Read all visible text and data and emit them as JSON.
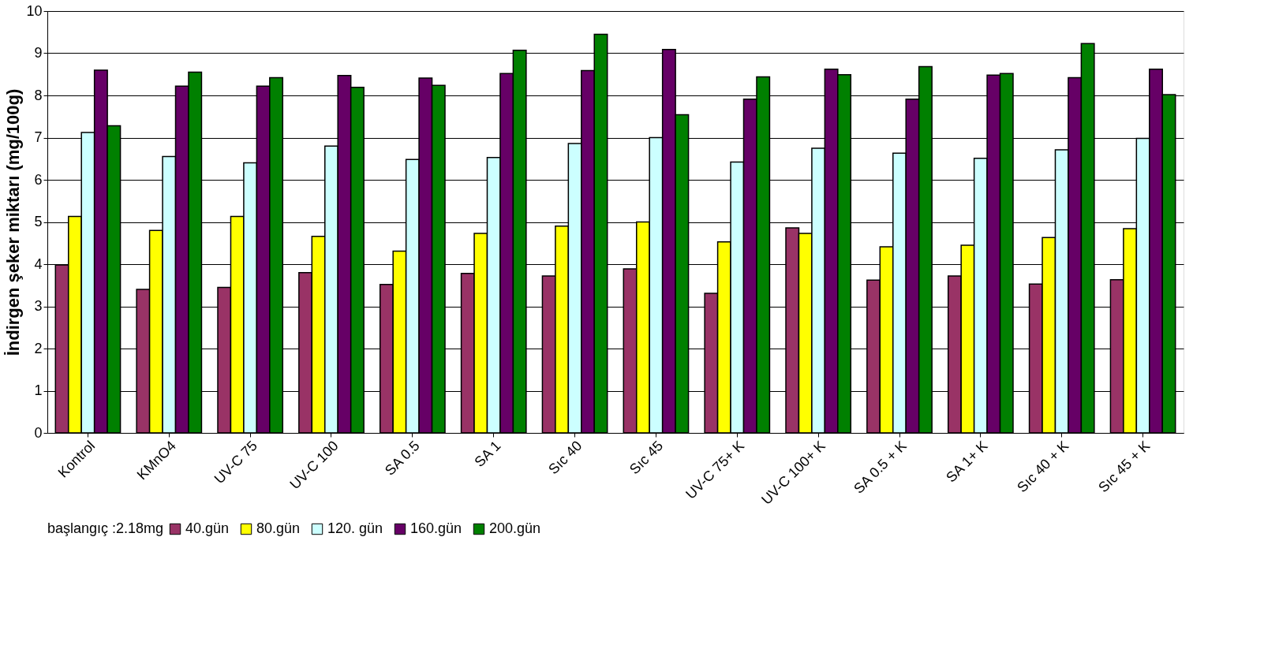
{
  "chart_data": {
    "type": "bar",
    "ylabel": "İndirgen şeker miktarı (mg/100g)",
    "legend_title": "başlangıç :2.18mg",
    "categories": [
      "Kontrol",
      "KMnO4",
      "UV-C 75",
      "UV-C 100",
      "SA 0.5",
      "SA 1",
      "Sıc 40",
      "Sıc 45",
      "UV-C 75+ K",
      "UV-C 100+ K",
      "SA 0.5 + K",
      "SA 1+ K",
      "Sıc 40 + K",
      "Sıc 45 + K"
    ],
    "series": [
      {
        "name": "40.gün",
        "color": "#993366",
        "values": [
          3.98,
          3.4,
          3.45,
          3.8,
          3.52,
          3.78,
          3.72,
          3.89,
          3.31,
          4.86,
          3.62,
          3.72,
          3.53,
          3.63
        ]
      },
      {
        "name": "80.gün",
        "color": "#ffff00",
        "values": [
          5.13,
          4.8,
          5.13,
          4.66,
          4.31,
          4.73,
          4.9,
          5.0,
          4.53,
          4.73,
          4.41,
          4.45,
          4.63,
          4.84
        ]
      },
      {
        "name": "120. gün",
        "color": "#ccffff",
        "values": [
          7.12,
          6.55,
          6.4,
          6.8,
          6.48,
          6.53,
          6.86,
          7.0,
          6.42,
          6.75,
          6.63,
          6.51,
          6.71,
          6.98
        ]
      },
      {
        "name": "160.gün",
        "color": "#660066",
        "values": [
          8.6,
          8.22,
          8.22,
          8.47,
          8.41,
          8.52,
          8.59,
          9.09,
          7.91,
          8.62,
          7.91,
          8.48,
          8.42,
          8.62
        ]
      },
      {
        "name": "200.gün",
        "color": "#008000",
        "values": [
          7.28,
          8.55,
          8.42,
          8.19,
          8.24,
          9.07,
          9.45,
          7.54,
          8.44,
          8.49,
          8.68,
          8.52,
          9.23,
          8.02
        ]
      }
    ],
    "ylim": [
      0,
      10
    ],
    "yticks": [
      0,
      1,
      2,
      3,
      4,
      5,
      6,
      7,
      8,
      9,
      10
    ],
    "grid": "y",
    "legend": "bottom"
  }
}
